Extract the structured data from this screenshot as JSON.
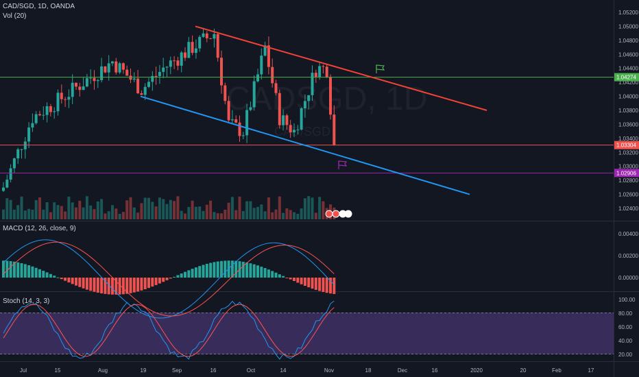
{
  "header": {
    "symbol_line": "CAD/SGD, 1D, OANDA",
    "volume_line": "Vol (20)",
    "macd_line": "MACD (12, 26, close, 9)",
    "stoch_line": "Stoch (14, 3, 3)"
  },
  "watermark": {
    "main": "CADSGD, 1D",
    "sub": "CAD/SGD"
  },
  "price_axis": {
    "ticks": [
      "1.05200",
      "1.05000",
      "1.04800",
      "1.04600",
      "1.04400",
      "1.04200",
      "1.04000",
      "1.03800",
      "1.03600",
      "1.03400",
      "1.03200",
      "1.03000",
      "1.02800",
      "1.02600",
      "1.02400"
    ],
    "tags": [
      {
        "label": "1.04274",
        "color": "#4caf50"
      },
      {
        "label": "1.03304",
        "color": "#ef5350"
      },
      {
        "label": "1.02906",
        "color": "#9c27b0"
      }
    ]
  },
  "macd_axis": {
    "ticks": [
      "0.00400",
      "0.00200",
      "0.00000"
    ]
  },
  "stoch_axis": {
    "ticks": [
      "100.00",
      "80.00",
      "60.00",
      "40.00",
      "20.00"
    ]
  },
  "time_axis": {
    "ticks": [
      "Jul",
      "15",
      "Aug",
      "19",
      "Sep",
      "16",
      "Oct",
      "14",
      "Nov",
      "18",
      "Dec",
      "16",
      "2020",
      "20",
      "Feb",
      "17"
    ]
  },
  "colors": {
    "up": "#26a69a",
    "down": "#ef5350",
    "resistance": "#f44336",
    "support": "#2196f3",
    "hline_green": "#4caf50",
    "hline_red": "#ef5350",
    "hline_purple": "#9c27b0",
    "macd": "#2196f3",
    "signal": "#ff5252",
    "stoch_k": "#2196f3",
    "stoch_d": "#ff5252",
    "stoch_band": "#7e57c2"
  },
  "icons": [
    "flag-icon-green",
    "flag-icon-purple",
    "event-badge-icons"
  ]
}
